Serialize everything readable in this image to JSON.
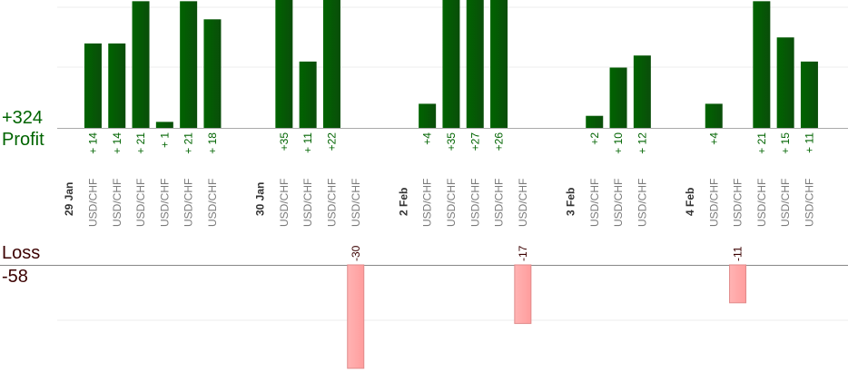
{
  "colors": {
    "profit_bar": "#006400",
    "loss_bar": "#ffb3b3",
    "profit_text": "#006400",
    "loss_text": "#3b0000",
    "pair_text": "#7a7a7a",
    "date_text": "#333333"
  },
  "labels": {
    "profit_total": "+324",
    "profit": "Profit",
    "loss": "Loss",
    "loss_total": "-58"
  },
  "chart_data": {
    "type": "bar",
    "title": "",
    "grid": true,
    "profit_axis_max": 21,
    "loss_axis_max": 30,
    "categories": [
      {
        "kind": "date",
        "label": "29 Jan"
      },
      {
        "kind": "trade",
        "pair": "USD/CHF",
        "value": 14,
        "value_label": "+ 14"
      },
      {
        "kind": "trade",
        "pair": "USD/CHF",
        "value": 14,
        "value_label": "+ 14"
      },
      {
        "kind": "trade",
        "pair": "USD/CHF",
        "value": 21,
        "value_label": "+ 21"
      },
      {
        "kind": "trade",
        "pair": "USD/CHF",
        "value": 1,
        "value_label": "+ 1"
      },
      {
        "kind": "trade",
        "pair": "USD/CHF",
        "value": 21,
        "value_label": "+ 21"
      },
      {
        "kind": "trade",
        "pair": "USD/CHF",
        "value": 18,
        "value_label": "+ 18"
      },
      {
        "kind": "gap"
      },
      {
        "kind": "date",
        "label": "30 Jan"
      },
      {
        "kind": "trade",
        "pair": "USD/CHF",
        "value": 35,
        "value_label": "+35"
      },
      {
        "kind": "trade",
        "pair": "USD/CHF",
        "value": 11,
        "value_label": "+ 11"
      },
      {
        "kind": "trade",
        "pair": "USD/CHF",
        "value": 22,
        "value_label": "+22"
      },
      {
        "kind": "trade",
        "pair": "USD/CHF",
        "value": -30,
        "value_label": "-30"
      },
      {
        "kind": "gap"
      },
      {
        "kind": "date",
        "label": "2 Feb"
      },
      {
        "kind": "trade",
        "pair": "USD/CHF",
        "value": 4,
        "value_label": "+4"
      },
      {
        "kind": "trade",
        "pair": "USD/CHF",
        "value": 35,
        "value_label": "+35"
      },
      {
        "kind": "trade",
        "pair": "USD/CHF",
        "value": 27,
        "value_label": "+27"
      },
      {
        "kind": "trade",
        "pair": "USD/CHF",
        "value": 26,
        "value_label": "+26"
      },
      {
        "kind": "trade",
        "pair": "USD/CHF",
        "value": -17,
        "value_label": "-17"
      },
      {
        "kind": "gap"
      },
      {
        "kind": "date",
        "label": "3 Feb"
      },
      {
        "kind": "trade",
        "pair": "USD/CHF",
        "value": 2,
        "value_label": "+2"
      },
      {
        "kind": "trade",
        "pair": "USD/CHF",
        "value": 10,
        "value_label": "+ 10"
      },
      {
        "kind": "trade",
        "pair": "USD/CHF",
        "value": 12,
        "value_label": "+ 12"
      },
      {
        "kind": "gap"
      },
      {
        "kind": "date",
        "label": "4 Feb"
      },
      {
        "kind": "trade",
        "pair": "USD/CHF",
        "value": 4,
        "value_label": "+4"
      },
      {
        "kind": "trade",
        "pair": "USD/CHF",
        "value": -11,
        "value_label": "-11"
      },
      {
        "kind": "trade",
        "pair": "USD/CHF",
        "value": 21,
        "value_label": "+ 21"
      },
      {
        "kind": "trade",
        "pair": "USD/CHF",
        "value": 15,
        "value_label": "+ 15"
      },
      {
        "kind": "trade",
        "pair": "USD/CHF",
        "value": 11,
        "value_label": "+ 11"
      }
    ]
  }
}
